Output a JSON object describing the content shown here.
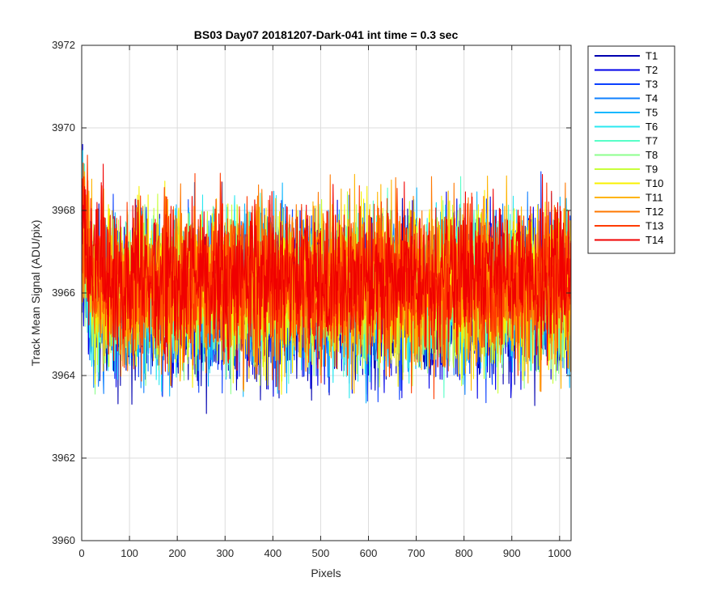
{
  "chart_data": {
    "type": "line",
    "title": "BS03 Day07 20181207-Dark-041 int time = 0.3 sec",
    "xlabel": "Pixels",
    "ylabel": "Track Mean Signal (ADU/pix)",
    "xlim": [
      0,
      1024
    ],
    "ylim": [
      3960,
      3972
    ],
    "xticks": [
      0,
      100,
      200,
      300,
      400,
      500,
      600,
      700,
      800,
      900,
      1000
    ],
    "yticks": [
      3960,
      3962,
      3964,
      3966,
      3968,
      3970,
      3972
    ],
    "grid": true,
    "legend_position": "outside-top-right",
    "n_points_per_series": 1024,
    "series_summary": "14 overlapping noise traces around ~3966 ADU/pix; early pixels (0-20) rise up to ~3971; overall spread roughly 3962-3970",
    "series": [
      {
        "name": "T1",
        "color": "#0000b0",
        "mean": 3965.7,
        "spread": 0.95,
        "min": 3961.8,
        "max": 3969.4
      },
      {
        "name": "T2",
        "color": "#0000e8",
        "mean": 3965.8,
        "spread": 0.95,
        "min": 3961.9,
        "max": 3969.6
      },
      {
        "name": "T3",
        "color": "#0a40ff",
        "mean": 3965.9,
        "spread": 0.95,
        "min": 3962.0,
        "max": 3969.8
      },
      {
        "name": "T4",
        "color": "#0f80ff",
        "mean": 3966.0,
        "spread": 0.95,
        "min": 3962.2,
        "max": 3970.2
      },
      {
        "name": "T5",
        "color": "#12b8ff",
        "mean": 3966.0,
        "spread": 0.95,
        "min": 3961.8,
        "max": 3969.5
      },
      {
        "name": "T6",
        "color": "#2ae8f0",
        "mean": 3966.0,
        "spread": 0.9,
        "min": 3962.5,
        "max": 3970.0
      },
      {
        "name": "T7",
        "color": "#58ffc8",
        "mean": 3966.0,
        "spread": 0.9,
        "min": 3962.6,
        "max": 3969.2
      },
      {
        "name": "T8",
        "color": "#8cff8c",
        "mean": 3966.0,
        "spread": 0.9,
        "min": 3962.8,
        "max": 3969.0
      },
      {
        "name": "T9",
        "color": "#c8ff3a",
        "mean": 3966.1,
        "spread": 0.9,
        "min": 3962.9,
        "max": 3969.5
      },
      {
        "name": "T10",
        "color": "#f8f000",
        "mean": 3966.1,
        "spread": 0.95,
        "min": 3962.8,
        "max": 3970.2
      },
      {
        "name": "T11",
        "color": "#ffb400",
        "mean": 3966.2,
        "spread": 0.95,
        "min": 3962.4,
        "max": 3969.6
      },
      {
        "name": "T12",
        "color": "#ff7800",
        "mean": 3966.2,
        "spread": 0.95,
        "min": 3962.6,
        "max": 3969.5
      },
      {
        "name": "T13",
        "color": "#ff3c00",
        "mean": 3966.3,
        "spread": 0.95,
        "min": 3963.0,
        "max": 3969.5
      },
      {
        "name": "T14",
        "color": "#f00000",
        "mean": 3966.4,
        "spread": 0.95,
        "min": 3962.4,
        "max": 3970.8
      }
    ]
  }
}
